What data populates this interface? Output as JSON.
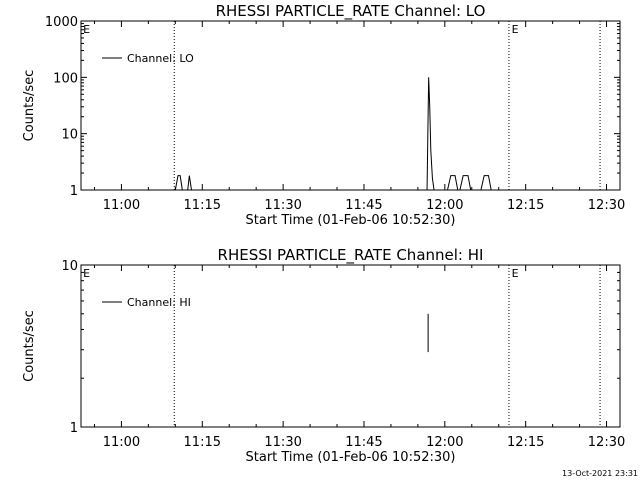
{
  "timestamp": "13-Oct-2021 23:31",
  "chart_data": [
    {
      "type": "line",
      "title": "RHESSI PARTICLE_RATE Channel: LO",
      "xlabel": "Start Time (01-Feb-06 10:52:30)",
      "ylabel": "Counts/sec",
      "x_unit": "minutes after 10:52:30",
      "xlim": [
        0,
        100
      ],
      "ylim": [
        1,
        1000
      ],
      "yscale": "log",
      "x_ticks": [
        {
          "value": 7.5,
          "label": "11:00"
        },
        {
          "value": 22.5,
          "label": "11:15"
        },
        {
          "value": 37.5,
          "label": "11:30"
        },
        {
          "value": 52.5,
          "label": "11:45"
        },
        {
          "value": 67.5,
          "label": "12:00"
        },
        {
          "value": 82.5,
          "label": "12:15"
        },
        {
          "value": 97.5,
          "label": "12:30"
        }
      ],
      "y_ticks": [
        {
          "value": 1,
          "label": "1"
        },
        {
          "value": 10,
          "label": "10"
        },
        {
          "value": 100,
          "label": "100"
        },
        {
          "value": 1000,
          "label": "1000"
        }
      ],
      "vlines": [
        17.3,
        79.4,
        96.3
      ],
      "markers": [
        {
          "label": "E",
          "x": 0.2
        },
        {
          "label": "E",
          "x": 79.7
        }
      ],
      "legend": {
        "position": "top-left",
        "entries": [
          "Channel: LO"
        ]
      },
      "series": [
        {
          "name": "Channel: LO",
          "segments": [
            [
              [
                17.5,
                1
              ],
              [
                18.0,
                1.8
              ],
              [
                18.4,
                1.8
              ],
              [
                18.8,
                1
              ]
            ],
            [
              [
                19.8,
                1
              ],
              [
                20.1,
                1.8
              ],
              [
                20.5,
                1
              ]
            ],
            [
              [
                64.2,
                1
              ],
              [
                64.5,
                100
              ],
              [
                64.7,
                30
              ],
              [
                64.9,
                5
              ],
              [
                65.2,
                1.6
              ],
              [
                65.5,
                1
              ]
            ],
            [
              [
                68.0,
                1
              ],
              [
                68.6,
                1.8
              ],
              [
                69.4,
                1.8
              ],
              [
                69.9,
                1
              ]
            ],
            [
              [
                70.3,
                1
              ],
              [
                70.9,
                1.8
              ],
              [
                71.8,
                1.8
              ],
              [
                72.3,
                1
              ]
            ],
            [
              [
                74.2,
                1
              ],
              [
                74.8,
                1.8
              ],
              [
                75.6,
                1.8
              ],
              [
                76.1,
                1
              ]
            ]
          ]
        }
      ]
    },
    {
      "type": "line",
      "title": "RHESSI PARTICLE_RATE Channel: HI",
      "xlabel": "Start Time (01-Feb-06 10:52:30)",
      "ylabel": "Counts/sec",
      "x_unit": "minutes after 10:52:30",
      "xlim": [
        0,
        100
      ],
      "ylim": [
        1,
        10
      ],
      "yscale": "log",
      "x_ticks": [
        {
          "value": 7.5,
          "label": "11:00"
        },
        {
          "value": 22.5,
          "label": "11:15"
        },
        {
          "value": 37.5,
          "label": "11:30"
        },
        {
          "value": 52.5,
          "label": "11:45"
        },
        {
          "value": 67.5,
          "label": "12:00"
        },
        {
          "value": 82.5,
          "label": "12:15"
        },
        {
          "value": 97.5,
          "label": "12:30"
        }
      ],
      "y_ticks": [
        {
          "value": 1,
          "label": "1"
        },
        {
          "value": 10,
          "label": "10"
        }
      ],
      "vlines": [
        17.3,
        79.4,
        96.3
      ],
      "markers": [
        {
          "label": "E",
          "x": 0.2
        },
        {
          "label": "E",
          "x": 79.7
        }
      ],
      "legend": {
        "position": "top-left",
        "entries": [
          "Channel: HI"
        ]
      },
      "series": [
        {
          "name": "Channel: HI",
          "segments": [
            [
              [
                64.4,
                5
              ],
              [
                64.4,
                2.9
              ]
            ]
          ]
        }
      ]
    }
  ]
}
